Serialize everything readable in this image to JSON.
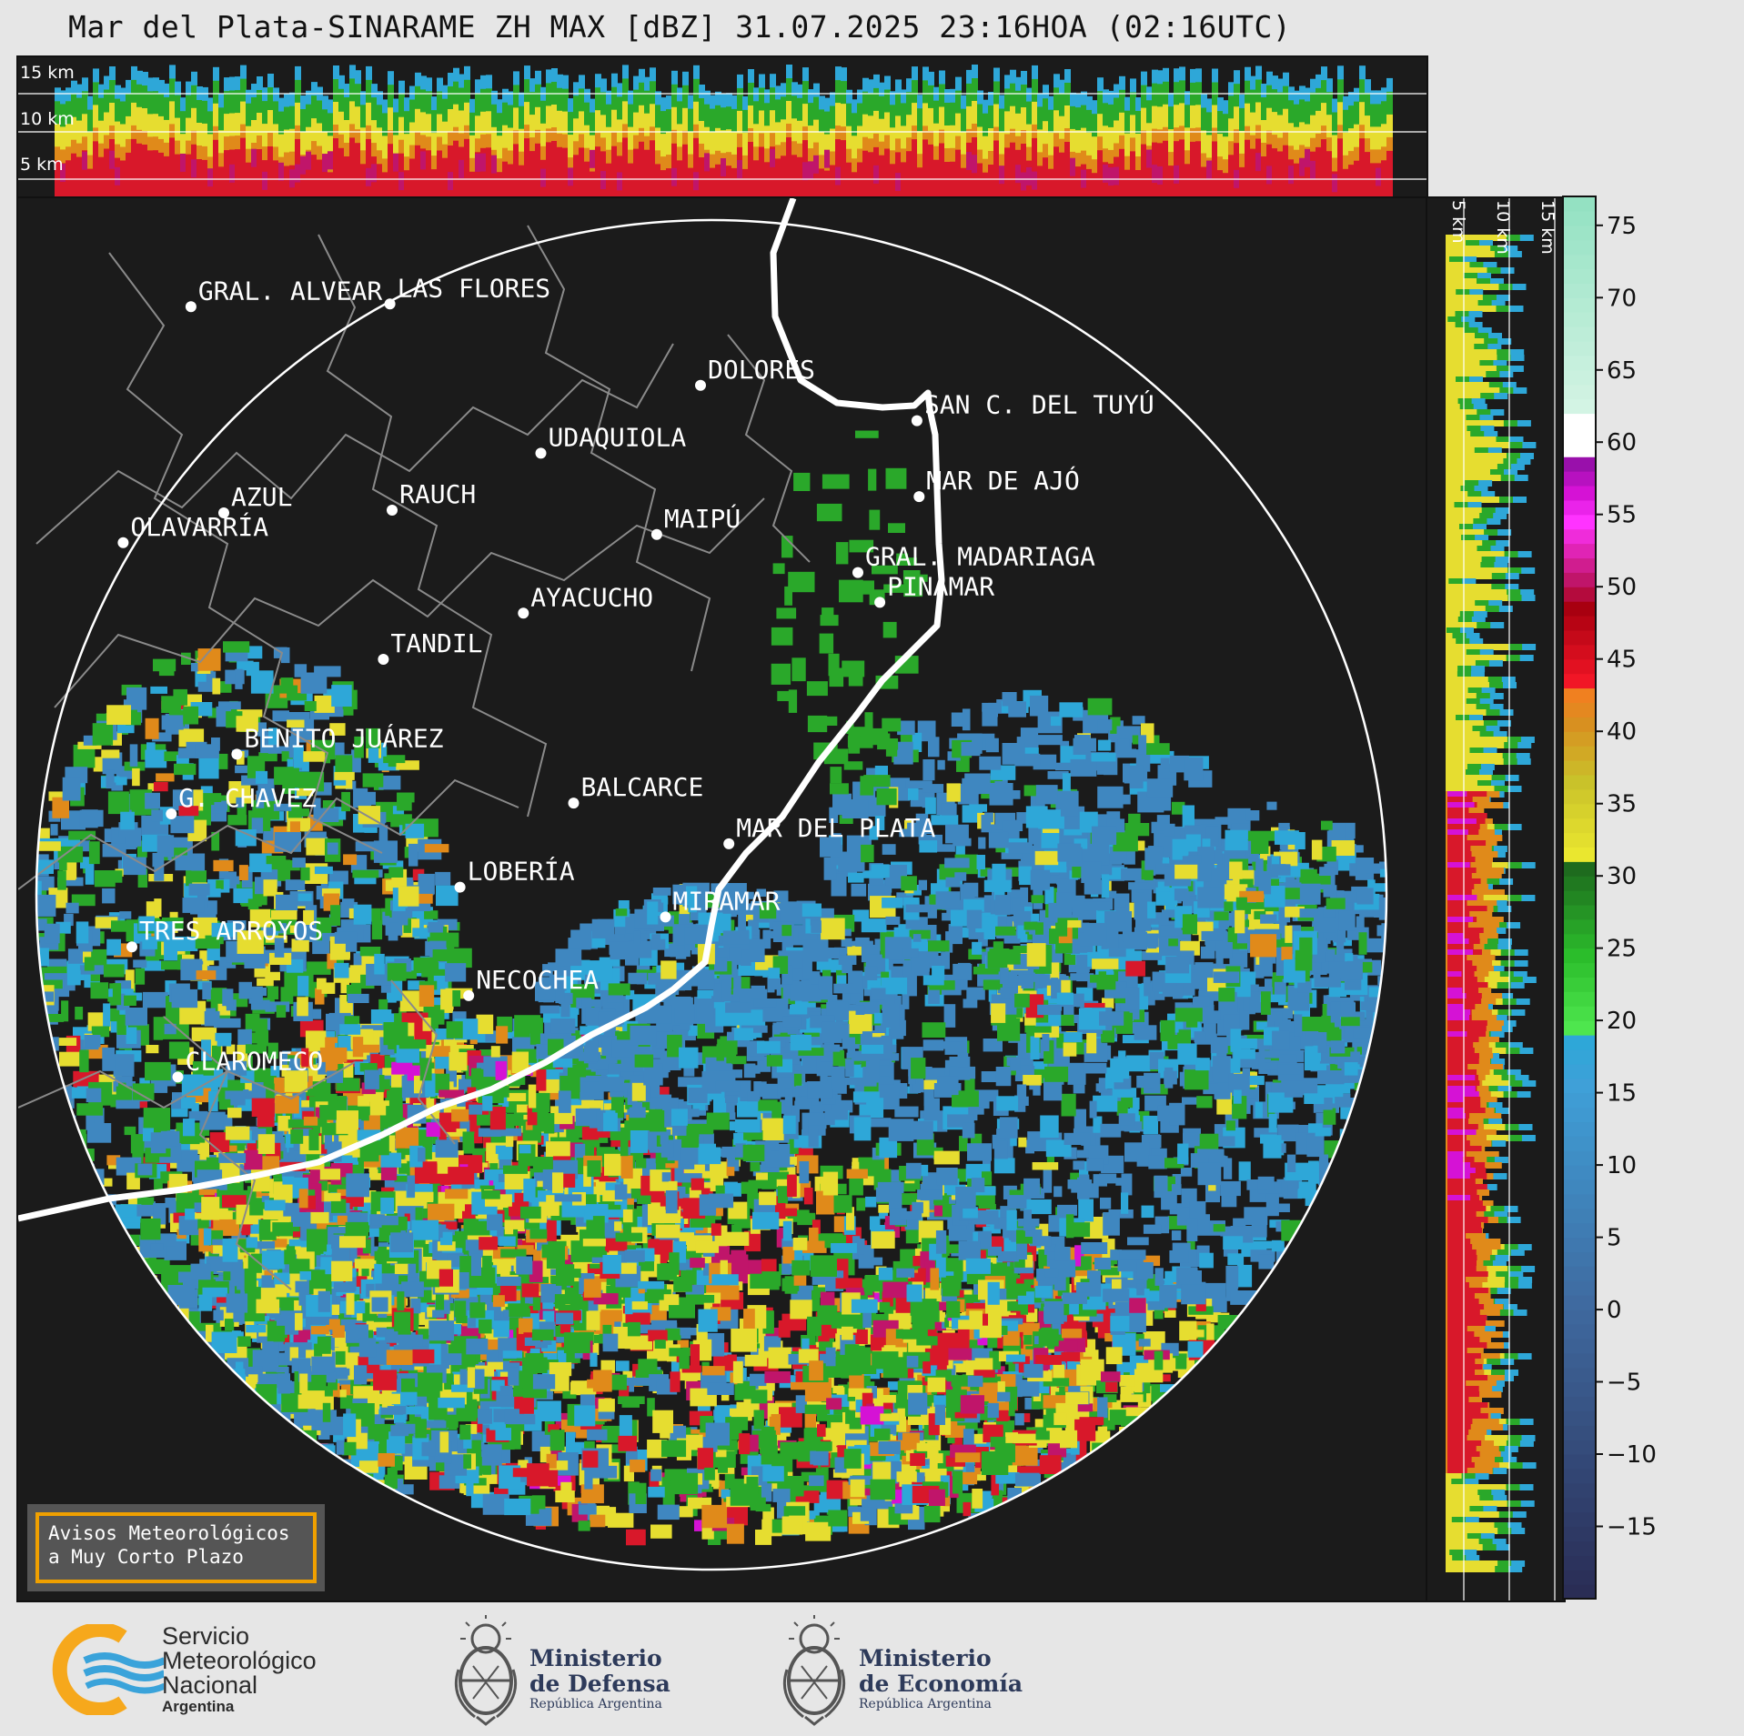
{
  "title": "Mar del Plata-SINARAME ZH MAX [dBZ] 31.07.2025 23:16HOA (02:16UTC)",
  "top_panel": {
    "height_labels": [
      "15 km",
      "10 km",
      "5 km"
    ]
  },
  "right_panel": {
    "height_labels": [
      "5 km",
      "10 km",
      "15 km"
    ]
  },
  "map": {
    "cities": [
      {
        "name": "GRAL. ALVEAR",
        "lon": -60.01,
        "lat": -36.02
      },
      {
        "name": "LAS FLORES",
        "lon": -59.1,
        "lat": -36.01
      },
      {
        "name": "DOLORES",
        "lon": -57.68,
        "lat": -36.31
      },
      {
        "name": "SAN C. DEL TUYÚ",
        "lon": -56.69,
        "lat": -36.44
      },
      {
        "name": "UDAQUIOLA",
        "lon": -58.41,
        "lat": -36.56
      },
      {
        "name": "MAR DE AJÓ",
        "lon": -56.68,
        "lat": -36.72
      },
      {
        "name": "AZUL",
        "lon": -59.86,
        "lat": -36.78
      },
      {
        "name": "RAUCH",
        "lon": -59.09,
        "lat": -36.77
      },
      {
        "name": "MAIPÚ",
        "lon": -57.88,
        "lat": -36.86
      },
      {
        "name": "OLAVARRÍA",
        "lon": -60.32,
        "lat": -36.89
      },
      {
        "name": "GRAL. MADARIAGA",
        "lon": -56.96,
        "lat": -37.0
      },
      {
        "name": "PINAMAR",
        "lon": -56.86,
        "lat": -37.11
      },
      {
        "name": "AYACUCHO",
        "lon": -58.49,
        "lat": -37.15
      },
      {
        "name": "TANDIL",
        "lon": -59.13,
        "lat": -37.32
      },
      {
        "name": "BENITO JUÁREZ",
        "lon": -59.8,
        "lat": -37.67
      },
      {
        "name": "BALCARCE",
        "lon": -58.26,
        "lat": -37.85
      },
      {
        "name": "MAR DEL PLATA",
        "lon": -57.55,
        "lat": -38.0
      },
      {
        "name": "G. CHAVEZ",
        "lon": -60.1,
        "lat": -37.89
      },
      {
        "name": "LOBERÍA",
        "lon": -58.78,
        "lat": -38.16
      },
      {
        "name": "MIRAMAR",
        "lon": -57.84,
        "lat": -38.27
      },
      {
        "name": "TRES ARROYOS",
        "lon": -60.28,
        "lat": -38.38
      },
      {
        "name": "NECOCHEA",
        "lon": -58.74,
        "lat": -38.56
      },
      {
        "name": "CLAROMECO",
        "lon": -60.07,
        "lat": -38.86
      }
    ]
  },
  "colorbar": {
    "unit": "dBZ",
    "range": [
      -20,
      77
    ],
    "ticks": [
      "75",
      "70",
      "65",
      "60",
      "55",
      "50",
      "45",
      "40",
      "35",
      "30",
      "25",
      "20",
      "15",
      "10",
      "5",
      "0",
      "−5",
      "−10",
      "−15"
    ],
    "tick_values": [
      75,
      70,
      65,
      60,
      55,
      50,
      45,
      40,
      35,
      30,
      25,
      20,
      15,
      10,
      5,
      0,
      -5,
      -10,
      -15
    ],
    "colors": {
      "below_0": "#3b3f6b",
      "0_15": "#3f87c0",
      "15_18": "#2ea7d8",
      "18_30": "#2aa82a",
      "30_40": "#e6dd30",
      "40_45": "#e08a1a",
      "45_50": "#d8182a",
      "50_55": "#c0156a",
      "55_58": "#d512d5",
      "58_60": "#9a1aa8",
      "60_62": "#ffffff",
      "62_77": "#8fe0c0"
    }
  },
  "warning_box": {
    "line1": "Avisos Meteorológicos",
    "line2": "a Muy Corto Plazo"
  },
  "logos": {
    "smn": {
      "line1": "Servicio",
      "line2": "Meteorológico",
      "line3": "Nacional",
      "line4": "Argentina"
    },
    "defensa": {
      "line1": "Ministerio",
      "line2": "de Defensa",
      "line3": "República Argentina"
    },
    "economia": {
      "line1": "Ministerio",
      "line2": "de Economía",
      "line3": "República Argentina"
    }
  }
}
